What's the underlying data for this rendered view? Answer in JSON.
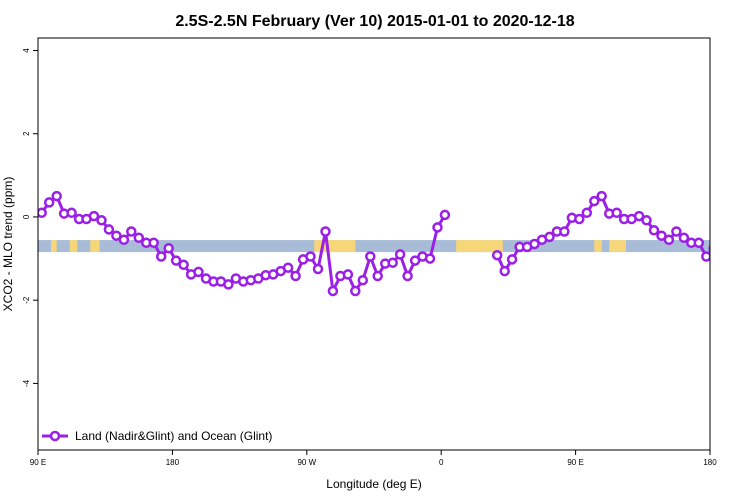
{
  "chart_data": {
    "type": "line",
    "title": "2.5S-2.5N February (Ver 10)   2015-01-01 to 2020-12-18",
    "xlabel": "Longitude (deg E)",
    "ylabel": "XCO2 - MLO trend (ppm)",
    "xlim": [
      90,
      450
    ],
    "ylim": [
      -5.6,
      4.3
    ],
    "grid": false,
    "legend_position": "bottom-left",
    "x_ticks": [
      {
        "value": 90,
        "label": "90 E"
      },
      {
        "value": 162,
        "label": "180"
      },
      {
        "value": 234,
        "label": "90 W"
      },
      {
        "value": 306,
        "label": "0"
      },
      {
        "value": 378,
        "label": "90 E"
      },
      {
        "value": 450,
        "label": "180"
      }
    ],
    "y_ticks": [
      {
        "value": 4,
        "label": "4"
      },
      {
        "value": 2,
        "label": "2"
      },
      {
        "value": 0,
        "label": "0"
      },
      {
        "value": -2,
        "label": "-2"
      },
      {
        "value": -4,
        "label": "-4"
      }
    ],
    "surface_band": {
      "y": -0.7,
      "ocean_color": "#a8bcd8",
      "land_color": "#f5d77a",
      "land_segments": [
        [
          97,
          100
        ],
        [
          107,
          111
        ],
        [
          118,
          123
        ],
        [
          238,
          260
        ],
        [
          314,
          339
        ],
        [
          388,
          392
        ],
        [
          396,
          405
        ]
      ]
    },
    "series": [
      {
        "name": "Land (Nadir&Glint) and Ocean (Glint)",
        "color": "#9b1fe6",
        "segments": [
          [
            [
              92,
              0.1
            ],
            [
              96,
              0.35
            ],
            [
              100,
              0.5
            ],
            [
              104,
              0.08
            ],
            [
              108,
              0.1
            ],
            [
              112,
              -0.05
            ],
            [
              116,
              -0.05
            ],
            [
              120,
              0.02
            ],
            [
              124,
              -0.08
            ],
            [
              128,
              -0.3
            ],
            [
              132,
              -0.45
            ],
            [
              136,
              -0.55
            ],
            [
              140,
              -0.35
            ],
            [
              144,
              -0.5
            ],
            [
              148,
              -0.62
            ],
            [
              152,
              -0.62
            ],
            [
              156,
              -0.95
            ],
            [
              160,
              -0.75
            ],
            [
              164,
              -1.05
            ],
            [
              168,
              -1.15
            ],
            [
              172,
              -1.38
            ],
            [
              176,
              -1.32
            ],
            [
              180,
              -1.48
            ],
            [
              184,
              -1.55
            ],
            [
              188,
              -1.55
            ],
            [
              192,
              -1.62
            ],
            [
              196,
              -1.48
            ],
            [
              200,
              -1.55
            ],
            [
              204,
              -1.52
            ],
            [
              208,
              -1.48
            ],
            [
              212,
              -1.4
            ],
            [
              216,
              -1.38
            ],
            [
              220,
              -1.3
            ],
            [
              224,
              -1.22
            ],
            [
              228,
              -1.42
            ],
            [
              232,
              -1.02
            ],
            [
              236,
              -0.95
            ],
            [
              240,
              -1.25
            ],
            [
              244,
              -0.35
            ],
            [
              248,
              -1.78
            ],
            [
              252,
              -1.42
            ],
            [
              256,
              -1.38
            ],
            [
              260,
              -1.78
            ],
            [
              264,
              -1.52
            ],
            [
              268,
              -0.95
            ],
            [
              272,
              -1.42
            ],
            [
              276,
              -1.12
            ],
            [
              280,
              -1.1
            ],
            [
              284,
              -0.9
            ],
            [
              288,
              -1.42
            ],
            [
              292,
              -1.05
            ],
            [
              296,
              -0.95
            ],
            [
              300,
              -1.0
            ],
            [
              304,
              -0.25
            ],
            [
              308,
              0.05
            ]
          ],
          [
            [
              336,
              -0.92
            ],
            [
              340,
              -1.3
            ],
            [
              344,
              -1.02
            ],
            [
              348,
              -0.72
            ],
            [
              352,
              -0.72
            ],
            [
              356,
              -0.65
            ],
            [
              360,
              -0.55
            ],
            [
              364,
              -0.48
            ],
            [
              368,
              -0.35
            ],
            [
              372,
              -0.35
            ],
            [
              376,
              -0.02
            ],
            [
              380,
              -0.05
            ],
            [
              384,
              0.1
            ],
            [
              388,
              0.38
            ],
            [
              392,
              0.5
            ],
            [
              396,
              0.08
            ],
            [
              400,
              0.1
            ],
            [
              404,
              -0.05
            ],
            [
              408,
              -0.05
            ],
            [
              412,
              0.02
            ],
            [
              416,
              -0.08
            ],
            [
              420,
              -0.32
            ],
            [
              424,
              -0.45
            ],
            [
              428,
              -0.55
            ],
            [
              432,
              -0.35
            ],
            [
              436,
              -0.5
            ],
            [
              440,
              -0.62
            ],
            [
              444,
              -0.62
            ],
            [
              448,
              -0.95
            ],
            [
              452,
              -0.75
            ]
          ]
        ]
      }
    ]
  }
}
